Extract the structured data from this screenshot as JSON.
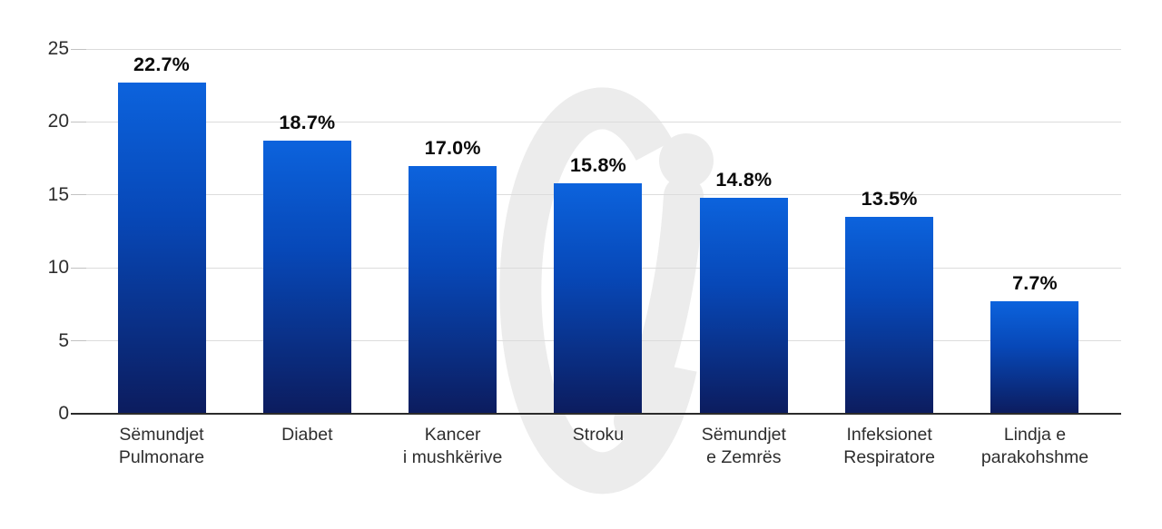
{
  "chart_data": {
    "type": "bar",
    "categories": [
      [
        "Sëmundjet",
        "Pulmonare"
      ],
      [
        "Diabet"
      ],
      [
        "Kancer",
        "i mushkërive"
      ],
      [
        "Stroku"
      ],
      [
        "Sëmundjet",
        "e Zemrës"
      ],
      [
        "Infeksionet",
        "Respiratore"
      ],
      [
        "Lindja e",
        "parakohshme"
      ]
    ],
    "values": [
      22.7,
      18.7,
      17.0,
      15.8,
      14.8,
      13.5,
      7.7
    ],
    "value_labels": [
      "22.7%",
      "18.7%",
      "17.0%",
      "15.8%",
      "14.8%",
      "13.5%",
      "7.7%"
    ],
    "title": "",
    "xlabel": "",
    "ylabel": "",
    "ylim": [
      0,
      25
    ],
    "yticks": [
      0,
      5,
      10,
      15,
      20,
      25
    ],
    "ytick_labels": [
      "0",
      "5",
      "10",
      "15",
      "20",
      "25"
    ],
    "grid": true,
    "legend": false,
    "colors": {
      "bar_gradient_top": "#0c63dd",
      "bar_gradient_mid": "#0748b8",
      "bar_gradient_bottom": "#0c1c5e",
      "gridline": "#dcdcdc",
      "tick_stub": "#c2c2c2",
      "axis_line": "#2b2b2b",
      "value_label": "#0a0a0a",
      "tick_label": "#2e2e2e",
      "watermark": "#ececec",
      "background": "#ffffff"
    }
  }
}
